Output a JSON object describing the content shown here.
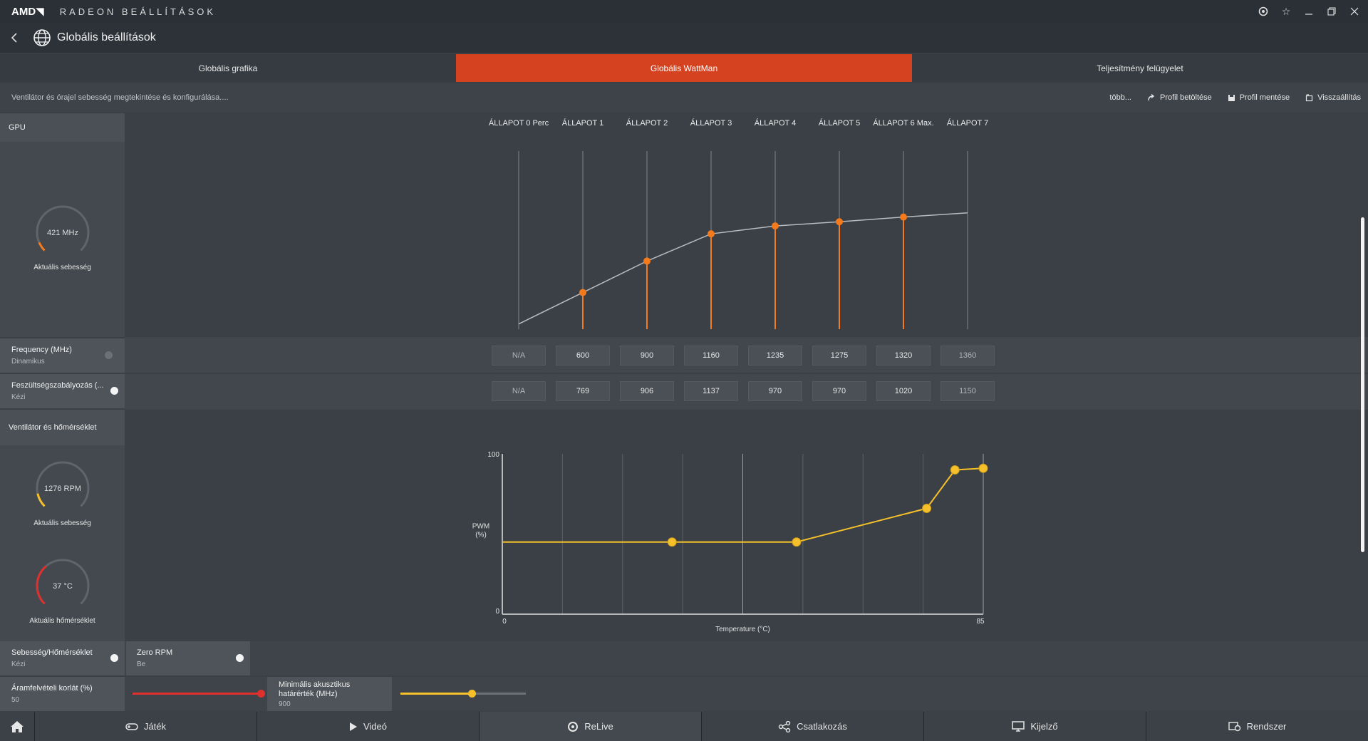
{
  "titlebar": {
    "logo": "AMD◥",
    "app_title": "RADEON BEÁLLÍTÁSOK",
    "controls": [
      "radeon-icon",
      "star-icon",
      "minimize-icon",
      "restore-icon",
      "close-icon"
    ]
  },
  "nav": {
    "title": "Globális beállítások"
  },
  "tabs": [
    {
      "label": "Globális grafika",
      "active": false
    },
    {
      "label": "Globális WattMan",
      "active": true
    },
    {
      "label": "Teljesítmény felügyelet",
      "active": false
    }
  ],
  "subheader": {
    "description": "Ventilátor és órajel sebesség megtekintése és konfigurálása....",
    "more": "több...",
    "load_profile": "Profil betöltése",
    "save_profile": "Profil mentése",
    "reset": "Visszaállítás"
  },
  "gpu": {
    "section_label": "GPU",
    "clock_value": "421 MHz",
    "clock_label": "Aktuális sebesség",
    "clock_fraction": 0.08,
    "frequency": {
      "title": "Frequency (MHz)",
      "mode": "Dinamikus"
    },
    "voltage": {
      "title": "Feszültségszabályozás (...",
      "mode": "Kézi"
    }
  },
  "fan": {
    "section_label": "Ventilátor és hőmérséklet",
    "speed_value": "1276 RPM",
    "speed_label": "Aktuális sebesség",
    "speed_fraction": 0.12,
    "temp_value": "37 °C",
    "temp_label": "Aktuális hőmérséklet",
    "temp_fraction": 0.35,
    "speed_temp": {
      "title": "Sebesség/Hőmérséklet",
      "mode": "Kézi"
    },
    "zero_rpm": {
      "title": "Zero RPM",
      "mode": "Be"
    }
  },
  "power": {
    "title": "Áramfelvételi korlát (%)",
    "value": "50",
    "fraction": 1.0
  },
  "acoustic": {
    "title": "Minimális akusztikus határérték (MHz)",
    "value": "900",
    "fraction": 0.57
  },
  "states": {
    "labels": [
      "ÁLLAPOT 0 Perc",
      "ÁLLAPOT 1",
      "ÁLLAPOT 2",
      "ÁLLAPOT 3",
      "ÁLLAPOT 4",
      "ÁLLAPOT 5",
      "ÁLLAPOT 6 Max.",
      "ÁLLAPOT 7"
    ],
    "frequency": [
      "N/A",
      "600",
      "900",
      "1160",
      "1235",
      "1275",
      "1320",
      "1360"
    ],
    "voltage": [
      "N/A",
      "769",
      "906",
      "1137",
      "970",
      "970",
      "1020",
      "1150"
    ]
  },
  "chart_data": [
    {
      "type": "line",
      "categories": [
        "ÁLLAPOT 0 Perc",
        "ÁLLAPOT 1",
        "ÁLLAPOT 2",
        "ÁLLAPOT 3",
        "ÁLLAPOT 4",
        "ÁLLAPOT 5",
        "ÁLLAPOT 6 Max.",
        "ÁLLAPOT 7"
      ],
      "values": [
        300,
        600,
        900,
        1160,
        1235,
        1275,
        1320,
        1360
      ],
      "active": [
        false,
        true,
        true,
        true,
        true,
        true,
        true,
        false
      ],
      "ylim": [
        250,
        1950
      ],
      "grid": false
    },
    {
      "type": "line",
      "title": "",
      "xlabel": "Temperature (°C)",
      "ylabel": "PWM (%)",
      "xlim": [
        0,
        85
      ],
      "ylim": [
        0,
        100
      ],
      "x_ticks": [
        "0",
        "85"
      ],
      "y_ticks": [
        "0",
        "100"
      ],
      "x": [
        0,
        30,
        52,
        75,
        80,
        85
      ],
      "y": [
        45,
        45,
        45,
        66,
        90,
        91
      ],
      "markers": [
        false,
        true,
        true,
        true,
        true,
        true
      ],
      "color": "#f5c02a"
    }
  ],
  "bottom_tabs": [
    {
      "label": "Játék",
      "icon": "gamepad-icon"
    },
    {
      "label": "Videó",
      "icon": "play-icon"
    },
    {
      "label": "ReLive",
      "icon": "relive-icon"
    },
    {
      "label": "Csatlakozás",
      "icon": "connect-icon"
    },
    {
      "label": "Kijelző",
      "icon": "monitor-icon"
    },
    {
      "label": "Rendszer",
      "icon": "system-icon"
    }
  ],
  "colors": {
    "accent": "#d54220",
    "orange": "#f47a1c",
    "yellow": "#f5c02a",
    "red": "#e0302e"
  }
}
